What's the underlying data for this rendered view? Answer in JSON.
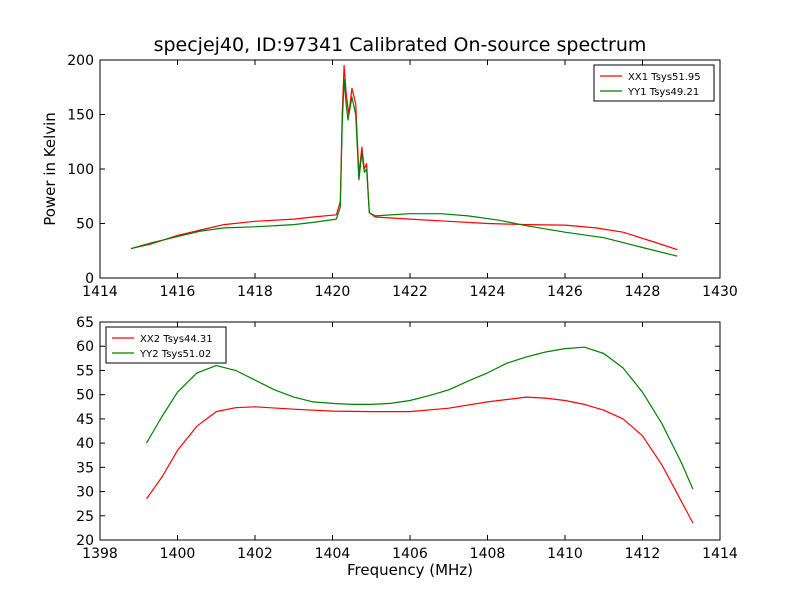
{
  "chart_data": {
    "title": "specjej40, ID:97341 Calibrated On-source spectrum",
    "xlabel": "Frequency (MHz)",
    "ylabel": "Power in Kelvin",
    "panels": [
      {
        "type": "line",
        "xlim": [
          1414,
          1430
        ],
        "ylim": [
          0,
          200
        ],
        "xticks": [
          1414,
          1416,
          1418,
          1420,
          1422,
          1424,
          1426,
          1428,
          1430
        ],
        "yticks": [
          0,
          50,
          100,
          150,
          200
        ],
        "legend_position": "top-right",
        "series": [
          {
            "name": "XX1 Tsys51.95",
            "color": "#ff0000",
            "points": [
              [
                1414.8,
                27
              ],
              [
                1415.3,
                31
              ],
              [
                1416,
                39
              ],
              [
                1416.6,
                44
              ],
              [
                1417.2,
                49
              ],
              [
                1418,
                52
              ],
              [
                1419,
                54
              ],
              [
                1419.5,
                56
              ],
              [
                1420.1,
                58
              ],
              [
                1420.2,
                70
              ],
              [
                1420.25,
                150
              ],
              [
                1420.3,
                195
              ],
              [
                1420.35,
                170
              ],
              [
                1420.42,
                150
              ],
              [
                1420.5,
                174
              ],
              [
                1420.6,
                160
              ],
              [
                1420.68,
                95
              ],
              [
                1420.76,
                120
              ],
              [
                1420.82,
                100
              ],
              [
                1420.88,
                105
              ],
              [
                1420.95,
                60
              ],
              [
                1421.1,
                56
              ],
              [
                1422,
                54
              ],
              [
                1423,
                52
              ],
              [
                1424,
                50
              ],
              [
                1425,
                49
              ],
              [
                1426,
                48.5
              ],
              [
                1426.8,
                46
              ],
              [
                1427.5,
                42
              ],
              [
                1428.3,
                33
              ],
              [
                1428.9,
                26
              ]
            ]
          },
          {
            "name": "YY1 Tsys49.21",
            "color": "#008000",
            "points": [
              [
                1414.8,
                27
              ],
              [
                1415.3,
                32
              ],
              [
                1416,
                38
              ],
              [
                1416.6,
                43
              ],
              [
                1417.2,
                46
              ],
              [
                1418,
                47
              ],
              [
                1419,
                49
              ],
              [
                1419.5,
                51
              ],
              [
                1420.1,
                54
              ],
              [
                1420.2,
                65
              ],
              [
                1420.25,
                140
              ],
              [
                1420.3,
                182
              ],
              [
                1420.35,
                160
              ],
              [
                1420.4,
                145
              ],
              [
                1420.5,
                166
              ],
              [
                1420.6,
                150
              ],
              [
                1420.68,
                90
              ],
              [
                1420.76,
                115
              ],
              [
                1420.82,
                97
              ],
              [
                1420.88,
                100
              ],
              [
                1420.95,
                60
              ],
              [
                1421.1,
                57
              ],
              [
                1422,
                59
              ],
              [
                1422.8,
                59
              ],
              [
                1423.5,
                57
              ],
              [
                1424.3,
                53
              ],
              [
                1425,
                48
              ],
              [
                1426,
                42
              ],
              [
                1427,
                37
              ],
              [
                1428,
                28
              ],
              [
                1428.9,
                20
              ]
            ]
          }
        ]
      },
      {
        "type": "line",
        "xlim": [
          1398,
          1414
        ],
        "ylim": [
          20,
          65
        ],
        "xticks": [
          1398,
          1400,
          1402,
          1404,
          1406,
          1408,
          1410,
          1412,
          1414
        ],
        "yticks": [
          20,
          25,
          30,
          35,
          40,
          45,
          50,
          55,
          60,
          65
        ],
        "legend_position": "top-left",
        "series": [
          {
            "name": "XX2 Tsys44.31",
            "color": "#ff0000",
            "points": [
              [
                1399.2,
                28.5
              ],
              [
                1399.6,
                33
              ],
              [
                1400,
                38.5
              ],
              [
                1400.5,
                43.5
              ],
              [
                1401,
                46.5
              ],
              [
                1401.5,
                47.3
              ],
              [
                1402,
                47.5
              ],
              [
                1403,
                47
              ],
              [
                1404,
                46.6
              ],
              [
                1405,
                46.5
              ],
              [
                1406,
                46.5
              ],
              [
                1407,
                47.2
              ],
              [
                1408,
                48.5
              ],
              [
                1408.5,
                49
              ],
              [
                1409,
                49.5
              ],
              [
                1409.5,
                49.3
              ],
              [
                1410,
                48.8
              ],
              [
                1410.5,
                48
              ],
              [
                1411,
                46.8
              ],
              [
                1411.5,
                45
              ],
              [
                1412,
                41.5
              ],
              [
                1412.5,
                35.5
              ],
              [
                1413,
                28
              ],
              [
                1413.3,
                23.5
              ]
            ]
          },
          {
            "name": "YY2 Tsys51.02",
            "color": "#008000",
            "points": [
              [
                1399.2,
                40
              ],
              [
                1399.6,
                45.5
              ],
              [
                1400,
                50.5
              ],
              [
                1400.5,
                54.5
              ],
              [
                1401,
                56
              ],
              [
                1401.5,
                55
              ],
              [
                1402,
                53
              ],
              [
                1402.5,
                51
              ],
              [
                1403,
                49.5
              ],
              [
                1403.5,
                48.5
              ],
              [
                1404,
                48.2
              ],
              [
                1404.5,
                48
              ],
              [
                1405,
                48
              ],
              [
                1405.5,
                48.2
              ],
              [
                1406,
                48.8
              ],
              [
                1406.5,
                49.8
              ],
              [
                1407,
                51
              ],
              [
                1407.5,
                52.8
              ],
              [
                1408,
                54.5
              ],
              [
                1408.5,
                56.5
              ],
              [
                1409,
                57.8
              ],
              [
                1409.5,
                58.8
              ],
              [
                1410,
                59.5
              ],
              [
                1410.5,
                59.8
              ],
              [
                1411,
                58.5
              ],
              [
                1411.5,
                55.5
              ],
              [
                1412,
                50.5
              ],
              [
                1412.5,
                44
              ],
              [
                1413,
                36
              ],
              [
                1413.3,
                30.5
              ]
            ]
          }
        ]
      }
    ]
  }
}
